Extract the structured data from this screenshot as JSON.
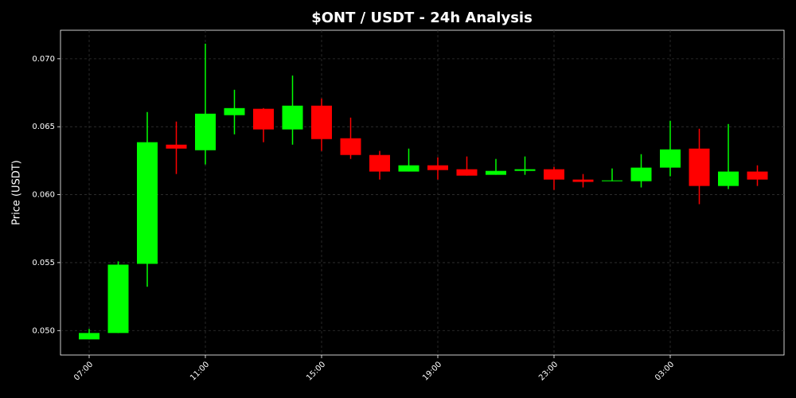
{
  "chart_data": {
    "type": "candlestick",
    "title": "$ONT / USDT - 24h Analysis",
    "y_label": "Price (USDT)",
    "categories": [
      "07:00",
      null,
      null,
      null,
      "11:00",
      null,
      null,
      null,
      "15:00",
      null,
      null,
      null,
      "19:00",
      null,
      null,
      null,
      "23:00",
      null,
      null,
      null,
      "03:00",
      null,
      null,
      null
    ],
    "open": [
      0.04935,
      0.04982,
      0.05491,
      0.06368,
      0.06327,
      0.06585,
      0.06632,
      0.0648,
      0.06655,
      0.06415,
      0.06292,
      0.0617,
      0.06216,
      0.06187,
      0.06146,
      0.06175,
      0.06187,
      0.06111,
      0.06099,
      0.06099,
      0.06199,
      0.06339,
      0.06064,
      0.0617
    ],
    "high": [
      0.05012,
      0.05509,
      0.06608,
      0.06538,
      0.07111,
      0.06772,
      0.06637,
      0.06877,
      0.06708,
      0.06567,
      0.06322,
      0.06339,
      0.06275,
      0.06281,
      0.06263,
      0.06281,
      0.06205,
      0.06152,
      0.06193,
      0.06298,
      0.06544,
      0.06485,
      0.0652,
      0.06216
    ],
    "low": [
      0.04935,
      0.04982,
      0.05322,
      0.06152,
      0.06222,
      0.06444,
      0.06386,
      0.06368,
      0.06322,
      0.06263,
      0.06111,
      0.0617,
      0.06111,
      0.0614,
      0.06146,
      0.06146,
      0.06035,
      0.06053,
      0.06099,
      0.06053,
      0.06135,
      0.0593,
      0.06041,
      0.06064
    ],
    "close": [
      0.04982,
      0.05485,
      0.06386,
      0.06339,
      0.06596,
      0.06637,
      0.0648,
      0.06655,
      0.06409,
      0.06292,
      0.0617,
      0.06216,
      0.06181,
      0.0614,
      0.06175,
      0.06187,
      0.06111,
      0.06094,
      0.06105,
      0.06199,
      0.06333,
      0.06064,
      0.0617,
      0.06111
    ],
    "up_color": "#00ff00",
    "down_color": "#ff0000",
    "ylim": [
      0.0482,
      0.0721
    ],
    "yticks": [
      {
        "value": 0.05,
        "label": "0.050"
      },
      0.055,
      {
        "value": 0.06,
        "label": "0.060"
      },
      0.065,
      {
        "value": 0.07,
        "label": "0.070"
      }
    ],
    "grid": true
  }
}
